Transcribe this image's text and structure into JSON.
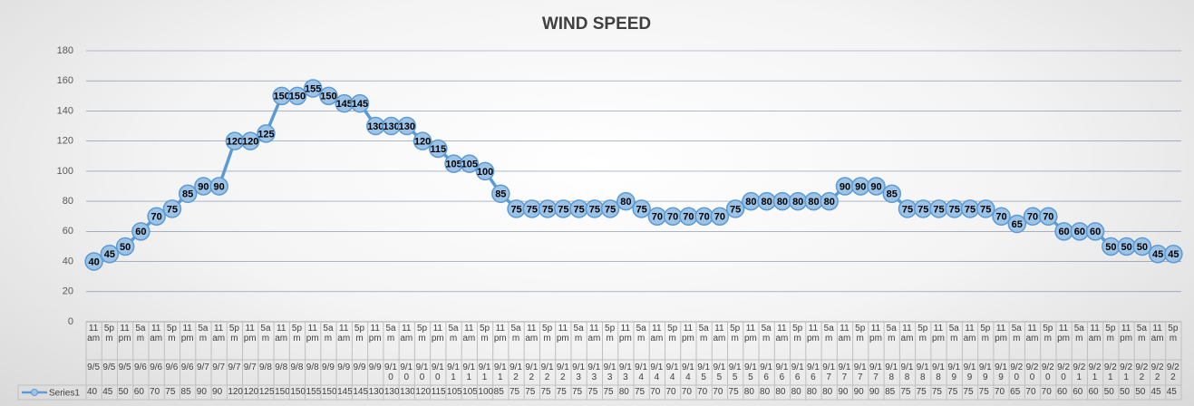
{
  "chart_data": {
    "type": "line",
    "title": "WIND SPEED",
    "categories": [
      [
        "11 am",
        "9/5"
      ],
      [
        "5pm",
        "9/5"
      ],
      [
        "11 pm",
        "9/5"
      ],
      [
        "5am",
        "9/6"
      ],
      [
        "11 am",
        "9/6"
      ],
      [
        "5pm",
        "9/6"
      ],
      [
        "11 pm",
        "9/6"
      ],
      [
        "5am",
        "9/7"
      ],
      [
        "11 am",
        "9/7"
      ],
      [
        "5pm",
        "9/7"
      ],
      [
        "11 pm",
        "9/7"
      ],
      [
        "5am",
        "9/8"
      ],
      [
        "11 am",
        "9/8"
      ],
      [
        "5pm",
        "9/8"
      ],
      [
        "11 pm",
        "9/8"
      ],
      [
        "5am",
        "9/9"
      ],
      [
        "11 am",
        "9/9"
      ],
      [
        "5pm",
        "9/9"
      ],
      [
        "11 pm",
        "9/9"
      ],
      [
        "5am",
        "9/10"
      ],
      [
        "11 am",
        "9/10"
      ],
      [
        "5pm",
        "9/10"
      ],
      [
        "11 pm",
        "9/10"
      ],
      [
        "5am",
        "9/11"
      ],
      [
        "11 am",
        "9/11"
      ],
      [
        "5pm",
        "9/11"
      ],
      [
        "11 pm",
        "9/11"
      ],
      [
        "5am",
        "9/12"
      ],
      [
        "11 am",
        "9/12"
      ],
      [
        "5pm",
        "9/12"
      ],
      [
        "11 pm",
        "9/12"
      ],
      [
        "5am",
        "9/13"
      ],
      [
        "11 am",
        "9/13"
      ],
      [
        "5pm",
        "9/13"
      ],
      [
        "11 pm",
        "9/13"
      ],
      [
        "5am",
        "9/14"
      ],
      [
        "11 am",
        "9/14"
      ],
      [
        "5pm",
        "9/14"
      ],
      [
        "11 pm",
        "9/14"
      ],
      [
        "5am",
        "9/15"
      ],
      [
        "11 am",
        "9/15"
      ],
      [
        "5pm",
        "9/15"
      ],
      [
        "11 pm",
        "9/15"
      ],
      [
        "5am",
        "9/16"
      ],
      [
        "11 am",
        "9/16"
      ],
      [
        "5pm",
        "9/16"
      ],
      [
        "11 pm",
        "9/16"
      ],
      [
        "5am",
        "9/17"
      ],
      [
        "11 am",
        "9/17"
      ],
      [
        "5pm",
        "9/17"
      ],
      [
        "11 pm",
        "9/17"
      ],
      [
        "5am",
        "9/18"
      ],
      [
        "11 am",
        "9/18"
      ],
      [
        "5pm",
        "9/18"
      ],
      [
        "11 pm",
        "9/18"
      ],
      [
        "5am",
        "9/19"
      ],
      [
        "11 am",
        "9/19"
      ],
      [
        "5pm",
        "9/19"
      ],
      [
        "11 pm",
        "9/19"
      ],
      [
        "5am",
        "9/20"
      ],
      [
        "11 am",
        "9/20"
      ],
      [
        "5pm",
        "9/20"
      ],
      [
        "11 pm",
        "9/20"
      ],
      [
        "5am",
        "9/21"
      ],
      [
        "11 am",
        "9/21"
      ],
      [
        "5pm",
        "9/21"
      ],
      [
        "11 pm",
        "9/21"
      ],
      [
        "5am",
        "9/22"
      ],
      [
        "11 am",
        "9/22"
      ],
      [
        "5pm",
        "9/22"
      ]
    ],
    "series": [
      {
        "name": "Series1",
        "color": "#5b9bd5",
        "marker_fill": "#9dc3e6",
        "values": [
          40,
          45,
          50,
          60,
          70,
          75,
          85,
          90,
          90,
          120,
          120,
          125,
          150,
          150,
          155,
          150,
          145,
          145,
          130,
          130,
          130,
          120,
          115,
          105,
          105,
          100,
          85,
          75,
          75,
          75,
          75,
          75,
          75,
          75,
          80,
          75,
          70,
          70,
          70,
          70,
          70,
          75,
          80,
          80,
          80,
          80,
          80,
          80,
          90,
          90,
          90,
          85,
          75,
          75,
          75,
          75,
          75,
          75,
          70,
          65,
          70,
          70,
          60,
          60,
          60,
          50,
          50,
          50,
          45,
          45
        ]
      }
    ],
    "ylim": [
      0,
      180
    ],
    "yticks": [
      0,
      20,
      40,
      60,
      80,
      100,
      120,
      140,
      160,
      180
    ],
    "grid": true,
    "data_labels": true
  }
}
